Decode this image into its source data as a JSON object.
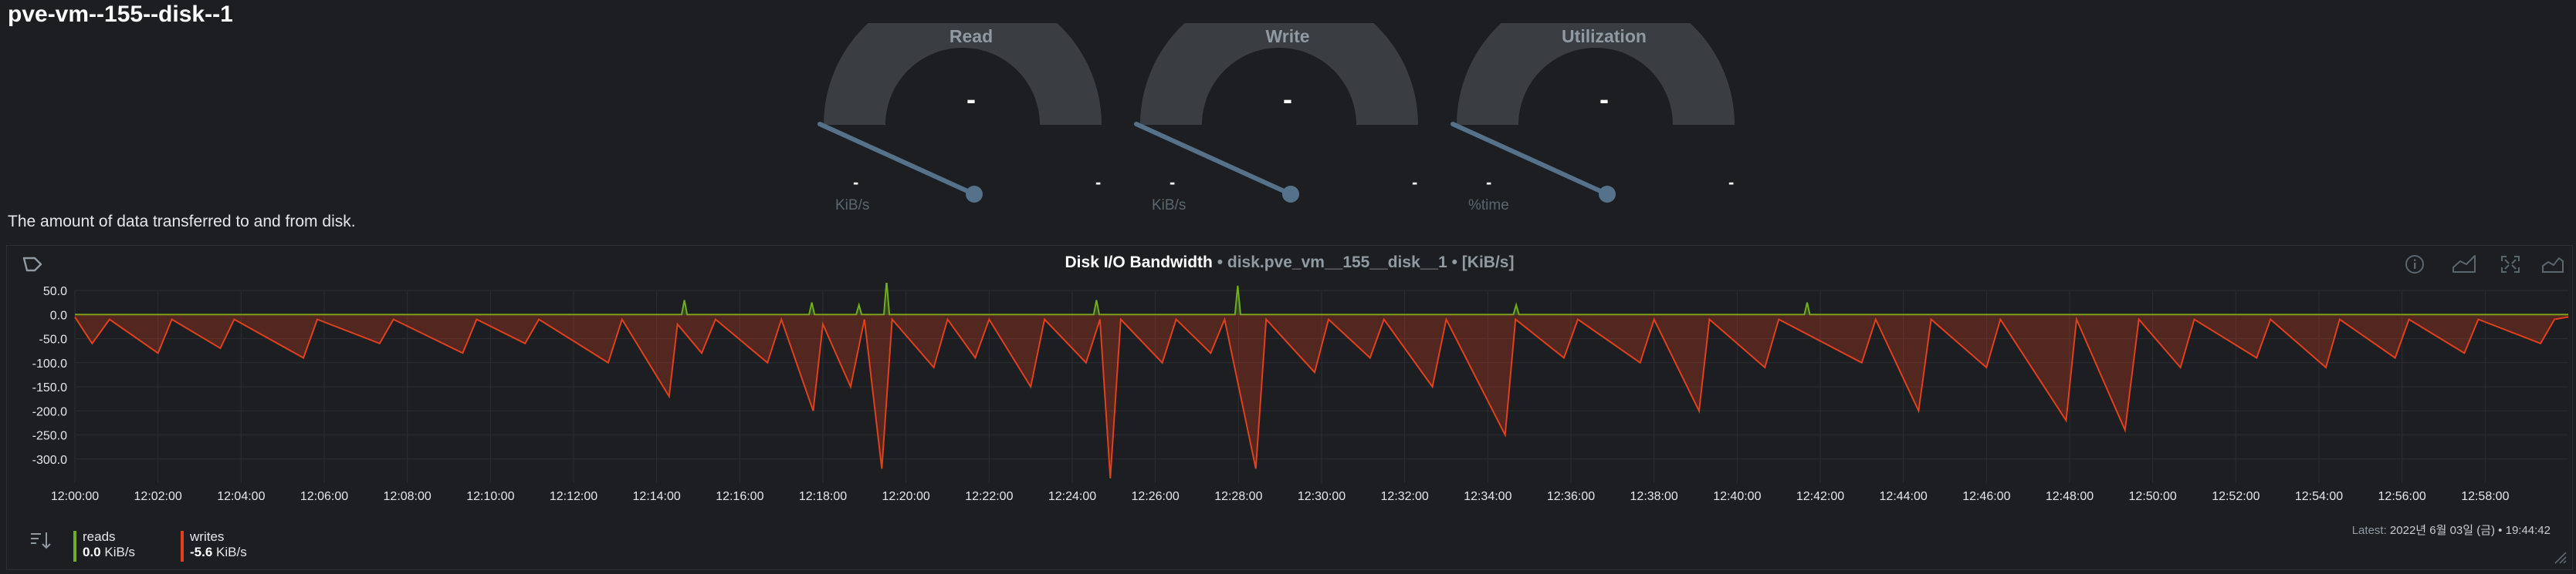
{
  "page": {
    "title": "pve-vm--155--disk--1"
  },
  "gauges": [
    {
      "title": "Read",
      "value": "-",
      "min": "-",
      "max": "-",
      "unit": "KiB/s"
    },
    {
      "title": "Write",
      "value": "-",
      "min": "-",
      "max": "-",
      "unit": "KiB/s"
    },
    {
      "title": "Utilization",
      "value": "-",
      "min": "-",
      "max": "-",
      "unit": "%time"
    }
  ],
  "description": "The amount of data transferred to and from disk.",
  "chart": {
    "title": "Disk I/O Bandwidth",
    "subtitle": " • disk.pve_vm__155__disk__1 • [KiB/s]",
    "colors": {
      "reads": "#6fae1f",
      "writes": "#e0401e",
      "grid": "#2a2e33",
      "axis_text": "#e4e6e8"
    }
  },
  "legend": {
    "reads": {
      "name": "reads",
      "value": "0.0",
      "unit": "KiB/s"
    },
    "writes": {
      "name": "writes",
      "value": "-5.6",
      "unit": "KiB/s"
    },
    "latest_label": "Latest:",
    "latest_value": "2022년 6월 03일 (금) • 19:44:42"
  },
  "icons": [
    "dashboard-icon",
    "info-icon",
    "chart-type-icon",
    "fullscreen-icon",
    "chart-area-icon",
    "sort-icon",
    "resize-handle-icon"
  ],
  "chart_data": {
    "type": "area",
    "x_ticks": [
      "12:00:00",
      "12:02:00",
      "12:04:00",
      "12:06:00",
      "12:08:00",
      "12:10:00",
      "12:12:00",
      "12:14:00",
      "12:16:00",
      "12:18:00",
      "12:20:00",
      "12:22:00",
      "12:24:00",
      "12:26:00",
      "12:28:00",
      "12:30:00",
      "12:32:00",
      "12:34:00",
      "12:36:00",
      "12:38:00",
      "12:40:00",
      "12:42:00",
      "12:44:00",
      "12:46:00",
      "12:48:00",
      "12:50:00",
      "12:52:00",
      "12:54:00",
      "12:56:00",
      "12:58:00"
    ],
    "y_ticks": [
      "50.0",
      "0.0",
      "-50.0",
      "-100.0",
      "-150.0",
      "-200.0",
      "-250.0",
      "-300.0"
    ],
    "ylim": [
      -350,
      50
    ],
    "x_range_seconds": [
      0,
      3600
    ],
    "series": [
      {
        "name": "reads",
        "color": "#6fae1f",
        "points": [
          [
            0,
            0
          ],
          [
            876,
            0
          ],
          [
            880,
            30
          ],
          [
            884,
            0
          ],
          [
            1060,
            0
          ],
          [
            1064,
            25
          ],
          [
            1068,
            0
          ],
          [
            1128,
            0
          ],
          [
            1132,
            20
          ],
          [
            1136,
            0
          ],
          [
            1168,
            0
          ],
          [
            1172,
            70
          ],
          [
            1176,
            0
          ],
          [
            1471,
            0
          ],
          [
            1475,
            30
          ],
          [
            1479,
            0
          ],
          [
            1675,
            0
          ],
          [
            1679,
            60
          ],
          [
            1683,
            0
          ],
          [
            2077,
            0
          ],
          [
            2081,
            20
          ],
          [
            2085,
            0
          ],
          [
            2497,
            0
          ],
          [
            2501,
            25
          ],
          [
            2505,
            0
          ],
          [
            3600,
            0
          ]
        ]
      },
      {
        "name": "writes",
        "color": "#e0401e",
        "points": [
          [
            0,
            -5
          ],
          [
            25,
            -60
          ],
          [
            50,
            -10
          ],
          [
            120,
            -80
          ],
          [
            140,
            -10
          ],
          [
            210,
            -70
          ],
          [
            230,
            -10
          ],
          [
            330,
            -90
          ],
          [
            350,
            -10
          ],
          [
            440,
            -60
          ],
          [
            460,
            -10
          ],
          [
            560,
            -80
          ],
          [
            580,
            -10
          ],
          [
            650,
            -60
          ],
          [
            670,
            -10
          ],
          [
            770,
            -100
          ],
          [
            790,
            -10
          ],
          [
            858,
            -170
          ],
          [
            870,
            -20
          ],
          [
            905,
            -80
          ],
          [
            925,
            -10
          ],
          [
            1000,
            -100
          ],
          [
            1020,
            -10
          ],
          [
            1066,
            -200
          ],
          [
            1080,
            -20
          ],
          [
            1120,
            -150
          ],
          [
            1140,
            -10
          ],
          [
            1165,
            -320
          ],
          [
            1180,
            -10
          ],
          [
            1240,
            -110
          ],
          [
            1260,
            -10
          ],
          [
            1300,
            -90
          ],
          [
            1320,
            -10
          ],
          [
            1380,
            -150
          ],
          [
            1400,
            -10
          ],
          [
            1460,
            -100
          ],
          [
            1480,
            -10
          ],
          [
            1495,
            -340
          ],
          [
            1510,
            -10
          ],
          [
            1570,
            -100
          ],
          [
            1590,
            -10
          ],
          [
            1640,
            -80
          ],
          [
            1660,
            -10
          ],
          [
            1705,
            -320
          ],
          [
            1720,
            -10
          ],
          [
            1790,
            -120
          ],
          [
            1810,
            -10
          ],
          [
            1870,
            -90
          ],
          [
            1890,
            -10
          ],
          [
            1960,
            -150
          ],
          [
            1980,
            -10
          ],
          [
            2065,
            -250
          ],
          [
            2080,
            -10
          ],
          [
            2150,
            -90
          ],
          [
            2170,
            -10
          ],
          [
            2260,
            -100
          ],
          [
            2280,
            -10
          ],
          [
            2345,
            -200
          ],
          [
            2360,
            -10
          ],
          [
            2440,
            -110
          ],
          [
            2460,
            -10
          ],
          [
            2580,
            -100
          ],
          [
            2600,
            -10
          ],
          [
            2662,
            -200
          ],
          [
            2680,
            -10
          ],
          [
            2760,
            -110
          ],
          [
            2780,
            -10
          ],
          [
            2875,
            -220
          ],
          [
            2890,
            -10
          ],
          [
            2960,
            -240
          ],
          [
            2980,
            -10
          ],
          [
            3040,
            -110
          ],
          [
            3060,
            -10
          ],
          [
            3150,
            -90
          ],
          [
            3170,
            -10
          ],
          [
            3250,
            -110
          ],
          [
            3270,
            -10
          ],
          [
            3350,
            -90
          ],
          [
            3370,
            -10
          ],
          [
            3450,
            -80
          ],
          [
            3470,
            -10
          ],
          [
            3560,
            -60
          ],
          [
            3580,
            -10
          ],
          [
            3600,
            -5
          ]
        ]
      }
    ]
  }
}
